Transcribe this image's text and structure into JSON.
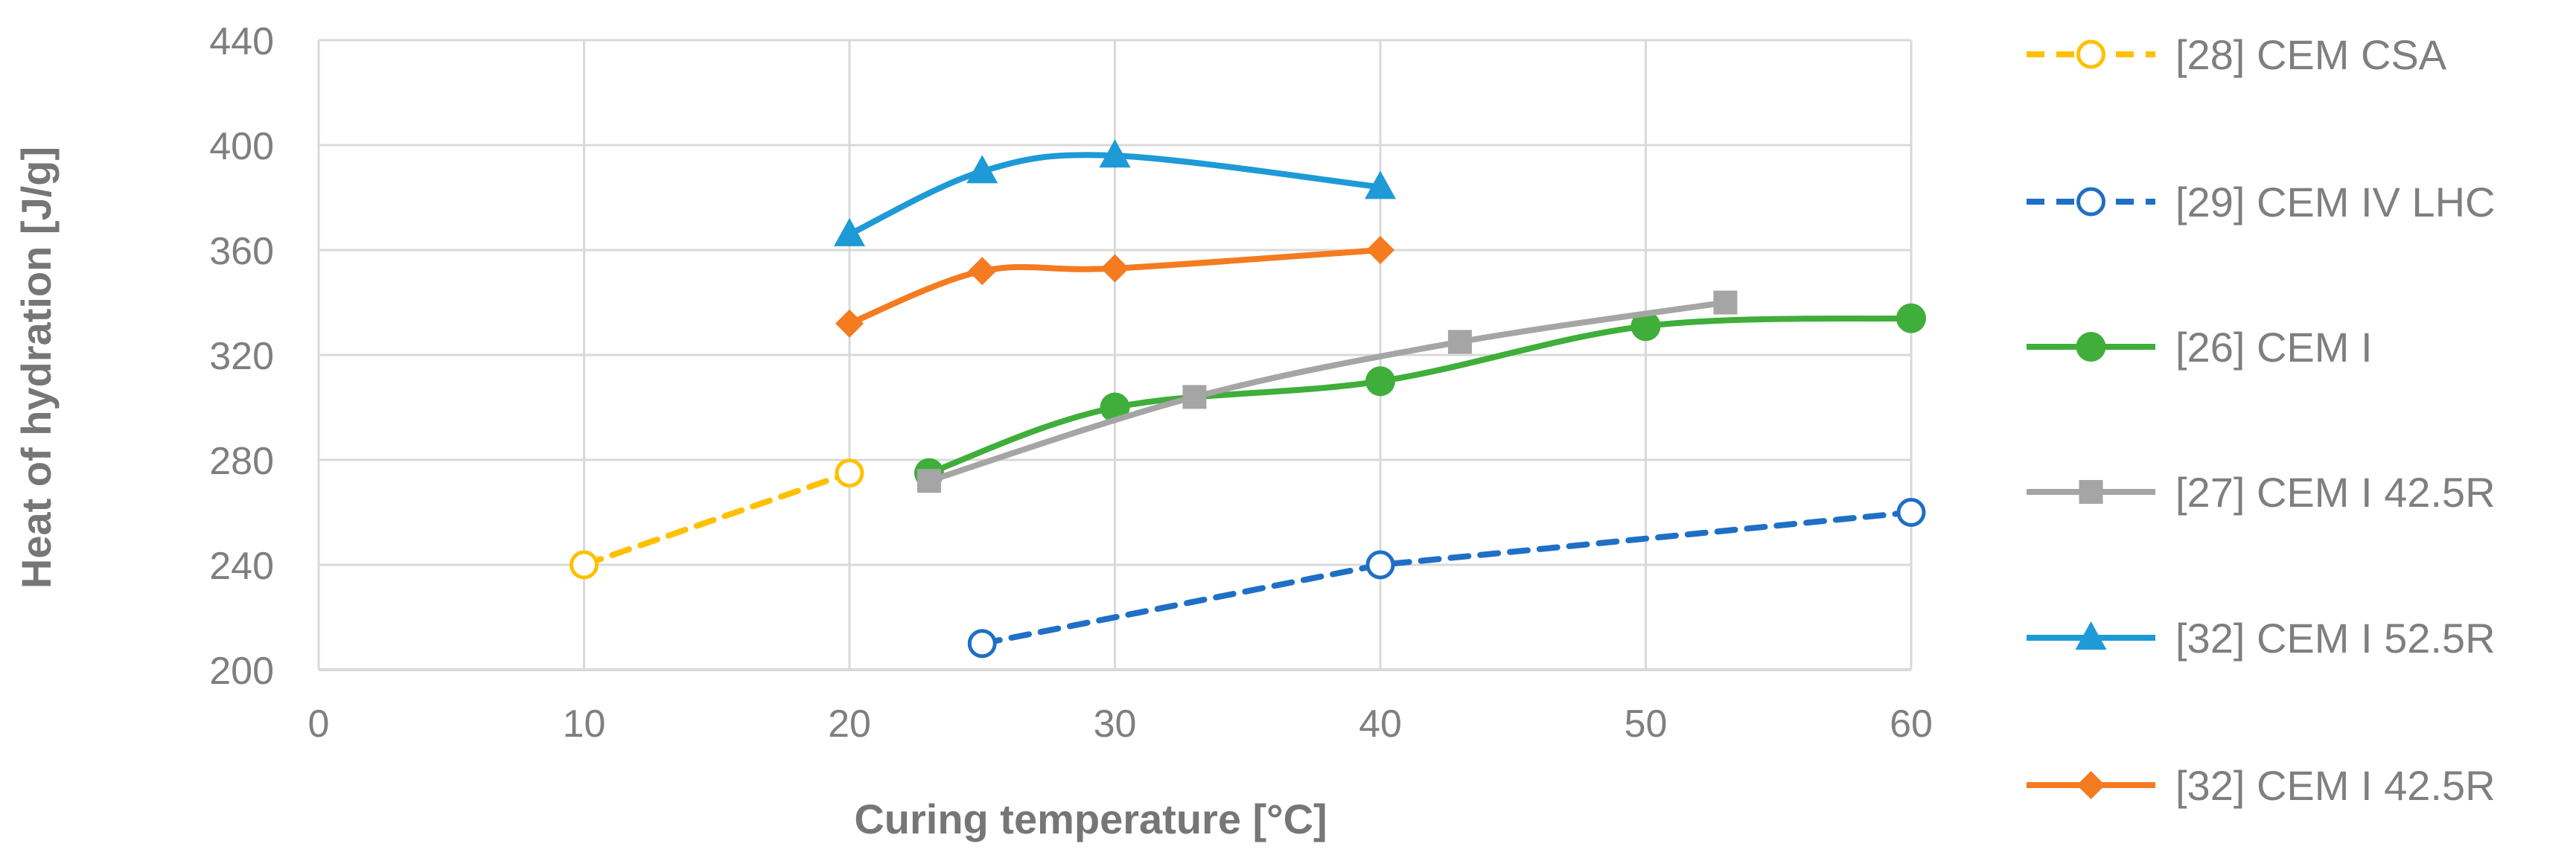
{
  "chart_data": {
    "type": "line",
    "xlabel": "Curing temperature [°C]",
    "ylabel": "Heat of hydration [J/g]",
    "xlim": [
      0,
      60
    ],
    "ylim": [
      200,
      440
    ],
    "xticks": [
      0,
      10,
      20,
      30,
      40,
      50,
      60
    ],
    "yticks": [
      200,
      240,
      280,
      320,
      360,
      400,
      440
    ],
    "grid": true,
    "legend_position": "right",
    "series": [
      {
        "name": "[28] CEM CSA",
        "color": "#ffc000",
        "line_style": "dashed",
        "marker": "open-circle",
        "x": [
          10,
          20
        ],
        "y": [
          240,
          275
        ]
      },
      {
        "name": "[29] CEM IV LHC",
        "color": "#1f6fc5",
        "line_style": "dashed",
        "marker": "open-circle",
        "x": [
          25,
          40,
          60
        ],
        "y": [
          210,
          240,
          260
        ]
      },
      {
        "name": "[26] CEM I",
        "color": "#3fae3a",
        "line_style": "solid",
        "marker": "circle",
        "x": [
          23,
          30,
          40,
          50,
          60
        ],
        "y": [
          275,
          300,
          310,
          331,
          334
        ]
      },
      {
        "name": "[27] CEM I 42.5R",
        "color": "#a5a5a5",
        "line_style": "solid",
        "marker": "square",
        "x": [
          23,
          33,
          43,
          53
        ],
        "y": [
          272,
          304,
          325,
          340
        ]
      },
      {
        "name": "[32] CEM I 52.5R",
        "color": "#1e9ad6",
        "line_style": "solid",
        "marker": "triangle",
        "x": [
          20,
          25,
          30,
          40
        ],
        "y": [
          366,
          390,
          396,
          384
        ]
      },
      {
        "name": "[32] CEM I 42.5R",
        "color": "#f47b20",
        "line_style": "solid",
        "marker": "diamond",
        "x": [
          20,
          25,
          30,
          40
        ],
        "y": [
          332,
          352,
          353,
          360
        ]
      }
    ]
  }
}
